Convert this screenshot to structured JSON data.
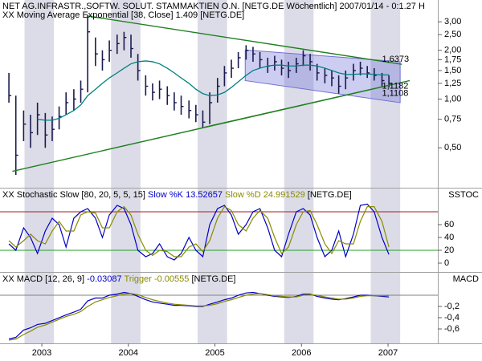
{
  "chart_data": [
    {
      "type": "ohlc",
      "title": "NET AG.INFRASTR.,SOFTW. SOLUT. STAMMAKTIEN O.N. [NETG.DE  Wöchentlich] 2007/01/14 - 0:1.27 H",
      "color": "#1a1a50",
      "log": true,
      "xlim": [
        2002.517,
        2007.575
      ],
      "xticks": [
        2003,
        2004,
        2005,
        2006,
        2007
      ],
      "ylim": [
        0.29,
        3.33
      ],
      "yticks": [
        {
          "value": 3,
          "label": "3,00"
        },
        {
          "value": 2.5,
          "label": "2,50"
        },
        {
          "value": 2,
          "label": "2,00"
        },
        {
          "value": 1.75,
          "label": "1,75"
        },
        {
          "value": 1.5,
          "label": "1,50"
        },
        {
          "value": 1.25,
          "label": "1,25"
        },
        {
          "value": 1,
          "label": "1,00"
        },
        {
          "value": 0.75,
          "label": "0,75"
        },
        {
          "value": 0.5,
          "label": "0,50"
        }
      ],
      "x": [
        2002.62,
        2002.7,
        2002.79,
        2002.87,
        2002.95,
        2003.04,
        2003.12,
        2003.2,
        2003.28,
        2003.37,
        2003.45,
        2003.53,
        2003.62,
        2003.7,
        2003.78,
        2003.87,
        2003.95,
        2004.03,
        2004.11,
        2004.2,
        2004.28,
        2004.36,
        2004.45,
        2004.53,
        2004.61,
        2004.7,
        2004.78,
        2004.86,
        2004.94,
        2005.03,
        2005.11,
        2005.19,
        2005.27,
        2005.36,
        2005.44,
        2005.52,
        2005.61,
        2005.69,
        2005.77,
        2005.85,
        2005.94,
        2006.02,
        2006.1,
        2006.18,
        2006.27,
        2006.35,
        2006.43,
        2006.51,
        2006.6,
        2006.68,
        2006.76,
        2006.84,
        2006.93,
        2007.01
      ],
      "high": [
        1.45,
        1.05,
        0.85,
        0.8,
        0.95,
        0.82,
        0.78,
        0.9,
        1.1,
        1.15,
        1.3,
        3.3,
        2.4,
        2.0,
        2.3,
        2.5,
        2.6,
        2.5,
        1.9,
        1.4,
        1.25,
        1.3,
        1.2,
        1.1,
        1.05,
        0.98,
        0.92,
        0.85,
        1.1,
        1.35,
        1.6,
        1.75,
        1.95,
        2.15,
        2.1,
        1.95,
        1.8,
        1.85,
        1.75,
        1.7,
        1.8,
        2.0,
        1.9,
        1.65,
        1.55,
        1.5,
        1.4,
        1.5,
        1.65,
        1.7,
        1.6,
        1.55,
        1.45,
        1.4
      ],
      "low": [
        0.95,
        0.34,
        0.55,
        0.5,
        0.6,
        0.5,
        0.55,
        0.65,
        0.8,
        0.85,
        0.95,
        1.1,
        1.6,
        1.5,
        1.7,
        1.9,
        2.0,
        1.8,
        1.3,
        1.05,
        0.98,
        1.0,
        0.92,
        0.85,
        0.8,
        0.76,
        0.72,
        0.66,
        0.7,
        0.95,
        1.2,
        1.35,
        1.55,
        1.75,
        1.7,
        1.55,
        1.45,
        1.5,
        1.4,
        1.35,
        1.45,
        1.6,
        1.5,
        1.3,
        1.25,
        1.2,
        1.08,
        1.15,
        1.3,
        1.4,
        1.35,
        1.3,
        1.2,
        1.18
      ],
      "close": [
        1.05,
        0.45,
        0.7,
        0.62,
        0.8,
        0.6,
        0.65,
        0.78,
        0.95,
        1.0,
        1.15,
        2.6,
        1.9,
        1.75,
        2.0,
        2.2,
        2.4,
        2.05,
        1.5,
        1.2,
        1.1,
        1.15,
        1.05,
        0.95,
        0.9,
        0.85,
        0.8,
        0.72,
        0.95,
        1.2,
        1.45,
        1.55,
        1.8,
        2.0,
        1.9,
        1.75,
        1.6,
        1.7,
        1.55,
        1.5,
        1.65,
        1.85,
        1.7,
        1.45,
        1.4,
        1.35,
        1.2,
        1.35,
        1.5,
        1.55,
        1.45,
        1.4,
        1.3,
        1.25
      ],
      "series": [
        {
          "name": "XX Moving Average Exponential [38, Close] 1.409 [NETG.DE]",
          "color": "#008080",
          "values": [
            null,
            null,
            null,
            null,
            0.75,
            0.74,
            0.74,
            0.76,
            0.8,
            0.85,
            0.92,
            1.05,
            1.15,
            1.25,
            1.35,
            1.45,
            1.55,
            1.65,
            1.7,
            1.72,
            1.7,
            1.65,
            1.55,
            1.45,
            1.35,
            1.25,
            1.15,
            1.08,
            1.05,
            1.06,
            1.1,
            1.18,
            1.28,
            1.4,
            1.5,
            1.55,
            1.6,
            1.62,
            1.62,
            1.6,
            1.6,
            1.62,
            1.62,
            1.6,
            1.55,
            1.5,
            1.45,
            1.42,
            1.42,
            1.43,
            1.43,
            1.42,
            1.41,
            1.409
          ]
        }
      ],
      "channel": {
        "x": [
          2005.35,
          2007.14
        ],
        "upper": [
          2.01,
          1.7
        ],
        "lower": [
          1.3,
          0.95
        ],
        "color": "#7070d8"
      },
      "trendlines": [
        {
          "x": [
            2003.54,
            2007.16
          ],
          "y": [
            3.25,
            1.6373
          ],
          "color": "#208020"
        },
        {
          "x": [
            2002.66,
            2007.25
          ],
          "y": [
            0.358,
            1.3
          ],
          "color": "#208020"
        },
        {
          "x": [
            2004.88,
            2007.05
          ],
          "y": [
            0.67,
            1.23
          ],
          "color": "#208020"
        }
      ],
      "annotations": [
        {
          "text": "1,6373",
          "x": 2006.93,
          "y": 1.6373,
          "color": "#208020"
        },
        {
          "text": "1,1182",
          "x": 2006.93,
          "y": 1.1182,
          "color": "#208020"
        },
        {
          "text": "1,1108",
          "x": 2006.93,
          "y": 1.1108,
          "color": "#208020"
        }
      ]
    },
    {
      "type": "line",
      "title": "XX Stochastic Slow [80, 20, 5, 5, 15]",
      "suffix": "[NETG.DE]",
      "label": "SSTOC",
      "ylim": [
        -12.5,
        112.5
      ],
      "yticks": [
        60,
        40,
        20,
        0
      ],
      "hlines": [
        {
          "value": 80,
          "color": "#a02020"
        },
        {
          "value": 20,
          "color": "#20a020"
        }
      ],
      "series": [
        {
          "name": "Slow %K 13.52657",
          "color": "#0000c8",
          "values": [
            30,
            20,
            55,
            40,
            15,
            50,
            70,
            60,
            25,
            70,
            80,
            85,
            70,
            40,
            75,
            90,
            85,
            60,
            20,
            10,
            15,
            30,
            10,
            5,
            15,
            40,
            20,
            10,
            60,
            85,
            90,
            75,
            45,
            60,
            80,
            85,
            55,
            20,
            10,
            45,
            80,
            85,
            75,
            40,
            10,
            20,
            50,
            10,
            45,
            90,
            92,
            80,
            40,
            13.52657
          ]
        },
        {
          "name": "Slow %D 24.991529",
          "color": "#8a8a00",
          "values": [
            35,
            25,
            35,
            45,
            35,
            30,
            50,
            65,
            50,
            50,
            75,
            80,
            78,
            55,
            55,
            80,
            88,
            75,
            45,
            20,
            12,
            20,
            18,
            10,
            10,
            25,
            30,
            18,
            35,
            70,
            88,
            82,
            60,
            50,
            70,
            82,
            70,
            40,
            15,
            25,
            60,
            80,
            82,
            60,
            30,
            15,
            35,
            30,
            30,
            65,
            88,
            88,
            65,
            24.991529
          ]
        }
      ]
    },
    {
      "type": "line",
      "title": "XX MACD [12, 26, 9]",
      "suffix": "[NETG.DE]",
      "label": "MACD",
      "ylim": [
        -0.814,
        0.4
      ],
      "yticks": [
        {
          "value": -0.2,
          "label": "-0,2"
        },
        {
          "value": -0.4,
          "label": "-0,4"
        },
        {
          "value": -0.6,
          "label": "-0,6"
        }
      ],
      "hlines": [
        {
          "value": 0,
          "color": "#808080"
        }
      ],
      "series": [
        {
          "name": "-0.03087",
          "color": "#0000c8",
          "values": [
            -0.78,
            -0.75,
            -0.62,
            -0.58,
            -0.52,
            -0.5,
            -0.45,
            -0.4,
            -0.35,
            -0.3,
            -0.25,
            -0.1,
            -0.05,
            -0.05,
            0.0,
            0.02,
            0.05,
            0.03,
            -0.02,
            -0.08,
            -0.12,
            -0.14,
            -0.16,
            -0.18,
            -0.18,
            -0.19,
            -0.2,
            -0.2,
            -0.16,
            -0.12,
            -0.08,
            -0.05,
            0.0,
            0.04,
            0.05,
            0.03,
            0.0,
            -0.02,
            -0.03,
            -0.04,
            -0.02,
            0.02,
            0.02,
            -0.02,
            -0.05,
            -0.07,
            -0.08,
            -0.06,
            -0.03,
            0.0,
            0.0,
            -0.01,
            -0.02,
            -0.03087
          ]
        },
        {
          "name": "Trigger -0.00555",
          "color": "#8a8a00",
          "values": [
            -0.8,
            -0.78,
            -0.7,
            -0.64,
            -0.57,
            -0.53,
            -0.48,
            -0.43,
            -0.38,
            -0.34,
            -0.29,
            -0.2,
            -0.12,
            -0.08,
            -0.04,
            -0.01,
            0.02,
            0.03,
            0.01,
            -0.04,
            -0.08,
            -0.11,
            -0.14,
            -0.16,
            -0.17,
            -0.18,
            -0.19,
            -0.19,
            -0.18,
            -0.15,
            -0.11,
            -0.08,
            -0.04,
            0.0,
            0.02,
            0.03,
            0.01,
            -0.01,
            -0.02,
            -0.03,
            -0.03,
            0.0,
            0.01,
            0.0,
            -0.03,
            -0.05,
            -0.07,
            -0.07,
            -0.05,
            -0.02,
            -0.01,
            -0.01,
            -0.01,
            -0.00555
          ]
        }
      ]
    }
  ]
}
